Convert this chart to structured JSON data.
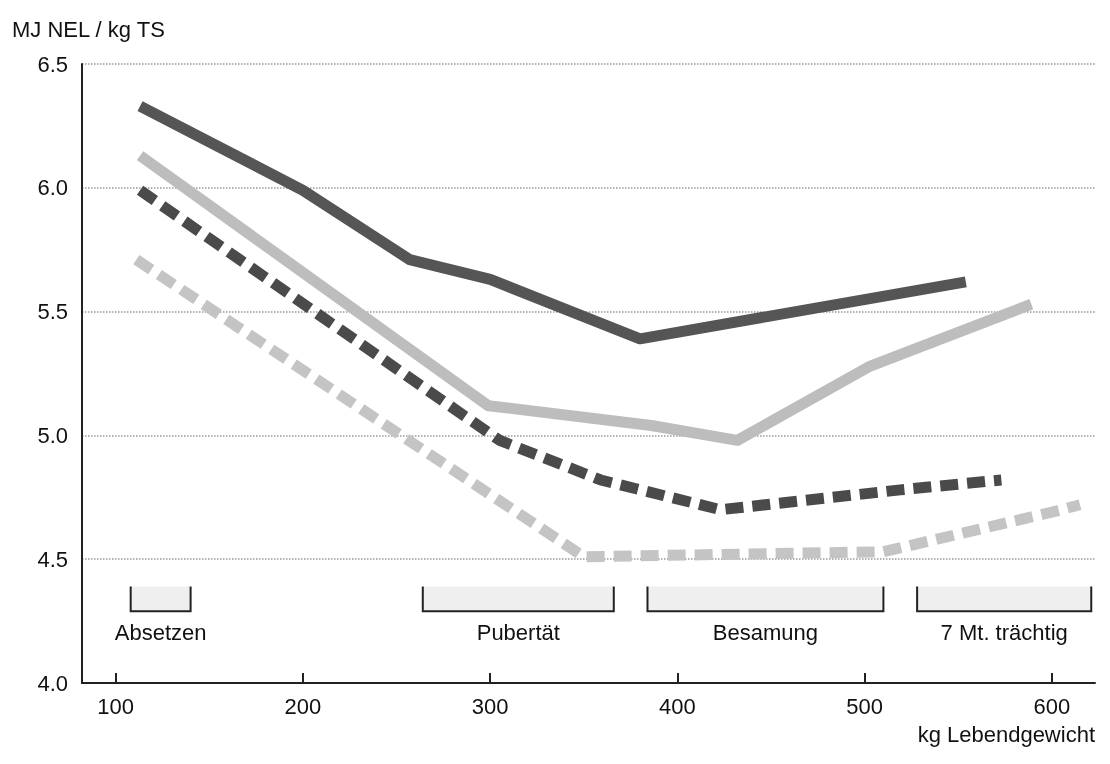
{
  "chart_data": {
    "type": "line",
    "ylabel": "MJ NEL / kg TS",
    "xlabel": "kg Lebendgewicht",
    "xlim": [
      82,
      623
    ],
    "xticks": [
      100,
      200,
      300,
      400,
      500,
      600
    ],
    "ylim": [
      4.0,
      6.5
    ],
    "yticks": [
      {
        "value": 4.0,
        "label": "4.0"
      },
      4.5,
      {
        "value": 5.0,
        "label": "5.0"
      },
      5.5,
      {
        "value": 6.0,
        "label": "6.0"
      },
      6.5
    ],
    "grid": "y",
    "marker": "none",
    "series": [
      {
        "color": "#555555",
        "line_style": "solid",
        "x": [
          113,
          200,
          257,
          300,
          380,
          554
        ],
        "values": [
          6.33,
          5.99,
          5.71,
          5.63,
          5.39,
          5.62
        ]
      },
      {
        "color": "#bdbdbd",
        "line_style": "solid",
        "x": [
          113,
          299,
          386,
          432,
          503,
          589
        ],
        "values": [
          6.13,
          5.12,
          5.04,
          4.98,
          5.28,
          5.53
        ]
      },
      {
        "color": "#4a4a4a",
        "line_style": "dashed",
        "x": [
          113,
          305,
          359,
          423,
          519,
          573
        ],
        "values": [
          5.99,
          4.98,
          4.82,
          4.7,
          4.78,
          4.82
        ]
      },
      {
        "color": "#c4c4c4",
        "line_style": "dashed",
        "x": [
          111,
          350,
          510,
          600,
          615
        ],
        "values": [
          5.71,
          4.51,
          4.53,
          4.69,
          4.72
        ]
      }
    ],
    "bands": [
      {
        "axis": "x",
        "from": 108,
        "to": 140,
        "label": "Absetzen",
        "color": "#222222"
      },
      {
        "axis": "x",
        "from": 264,
        "to": 366,
        "label": "Pubertät",
        "color": "#222222"
      },
      {
        "axis": "x",
        "from": 384,
        "to": 510,
        "label": "Besamung",
        "color": "#222222"
      },
      {
        "axis": "x",
        "from": 528,
        "to": 621,
        "label": "7 Mt. trächtig",
        "color": "#222222"
      }
    ]
  }
}
